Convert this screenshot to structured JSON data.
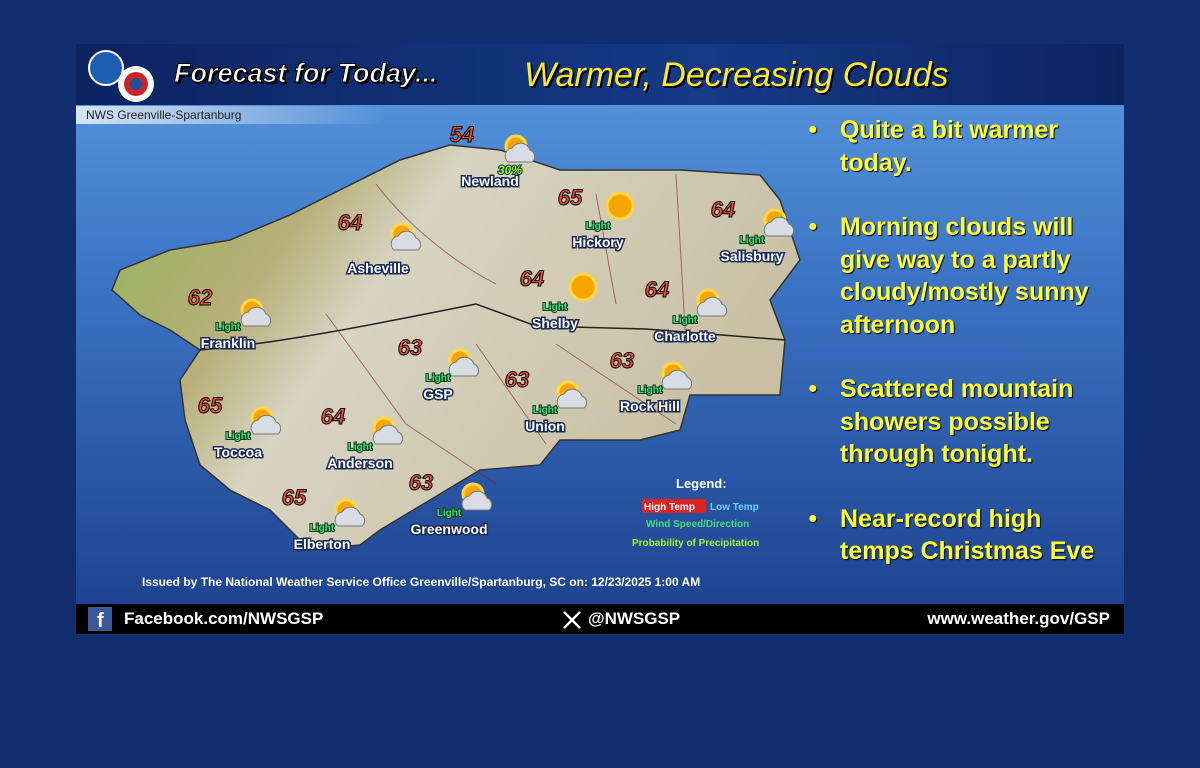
{
  "header": {
    "title": "Forecast for Today...",
    "headline": "Warmer, Decreasing Clouds",
    "office": "NWS Greenville-Spartanburg"
  },
  "cities": [
    {
      "name": "Newland",
      "high": "54",
      "pop": "30%"
    },
    {
      "name": "Asheville",
      "high": "64"
    },
    {
      "name": "Hickory",
      "high": "65",
      "wind": "Light"
    },
    {
      "name": "Salisbury",
      "high": "64",
      "wind": "Light"
    },
    {
      "name": "Franklin",
      "high": "62",
      "wind": "Light"
    },
    {
      "name": "Shelby",
      "high": "64",
      "wind": "Light"
    },
    {
      "name": "Charlotte",
      "high": "64",
      "wind": "Light"
    },
    {
      "name": "GSP",
      "high": "63",
      "wind": "Light"
    },
    {
      "name": "Union",
      "high": "63",
      "wind": "Light"
    },
    {
      "name": "Rock Hill",
      "high": "63",
      "wind": "Light"
    },
    {
      "name": "Toccoa",
      "high": "65",
      "wind": "Light"
    },
    {
      "name": "Anderson",
      "high": "64",
      "wind": "Light"
    },
    {
      "name": "Greenwood",
      "high": "63",
      "wind": "Light"
    },
    {
      "name": "Elberton",
      "high": "65",
      "wind": "Light"
    }
  ],
  "legend": {
    "title": "Legend:",
    "high": "High Temp",
    "low": "Low Temp",
    "wind": "Wind Speed/Direction",
    "pop": "Probability of Precipitation"
  },
  "bullets": [
    "Quite a bit warmer today.",
    "Morning clouds will give way to a partly cloudy/mostly sunny afternoon",
    "Scattered mountain showers possible through tonight.",
    "Near-record high temps Christmas Eve"
  ],
  "issued": "Issued by The National Weather Service Office Greenville/Spartanburg, SC on: 12/23/2025 1:00 AM",
  "footer": {
    "facebook": "Facebook.com/NWSGSP",
    "x": "@NWSGSP",
    "web": "www.weather.gov/GSP"
  }
}
